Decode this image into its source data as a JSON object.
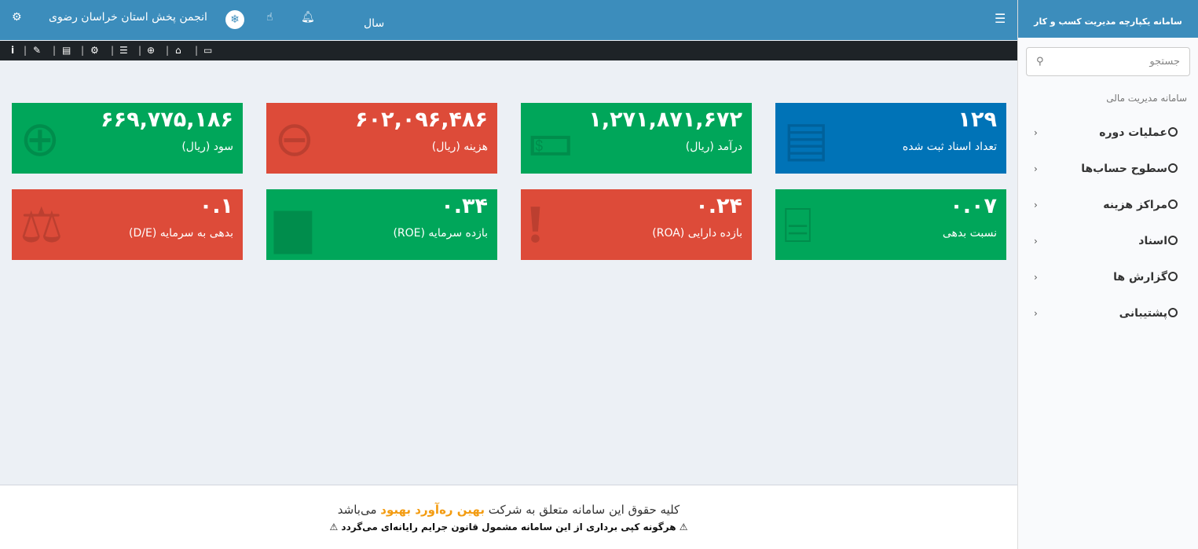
{
  "header": {
    "org_name": "انجمن پخش استان خراسان رضوی",
    "year_label": "سال"
  },
  "toolbar": {
    "icons": [
      "info-icon",
      "ticket-icon",
      "document-icon",
      "cogs-icon",
      "database-icon",
      "zoom-in-icon",
      "home-icon",
      "desktop-icon"
    ]
  },
  "sidebar": {
    "brand": "سامانه یکپارچه مدیریت کسب و کار",
    "search_placeholder": "جستجو",
    "section_title": "سامانه مدیریت مالی",
    "items": [
      {
        "label": "عملیات دوره"
      },
      {
        "label": "سطوح حساب‌ها"
      },
      {
        "label": "مراکز هزینه"
      },
      {
        "label": "اسناد"
      },
      {
        "label": "گزارش ها"
      },
      {
        "label": "پشتیبانی"
      }
    ]
  },
  "tiles": [
    {
      "value": "۱۲۹",
      "label": "تعداد اسناد ثبت شده",
      "color": "#0073b7",
      "icon": "newspaper-icon"
    },
    {
      "value": "۱,۲۷۱,۸۷۱,۶۷۲",
      "label": "درآمد (ریال)",
      "color": "#00a65a",
      "icon": "money-icon"
    },
    {
      "value": "۶۰۲,۰۹۶,۴۸۶",
      "label": "هزینه (ریال)",
      "color": "#dd4b39",
      "icon": "minus-circle-icon"
    },
    {
      "value": "۶۶۹,۷۷۵,۱۸۶",
      "label": "سود (ریال)",
      "color": "#00a65a",
      "icon": "plus-circle-icon"
    },
    {
      "value": "۰.۰۷",
      "label": "نسبت بدهی",
      "color": "#00a65a",
      "icon": "hdd-icon"
    },
    {
      "value": "۰.۲۴",
      "label": "بازده دارایی (ROA)",
      "color": "#dd4b39",
      "icon": "exclamation-circle-icon"
    },
    {
      "value": "۰.۳۴",
      "label": "بازده سرمایه (ROE)",
      "color": "#00a65a",
      "icon": "archive-icon"
    },
    {
      "value": "۰.۱",
      "label": "بدهی به سرمایه (D/E)",
      "color": "#dd4b39",
      "icon": "balance-scale-icon"
    }
  ],
  "footer": {
    "line1_prefix": "کلیه حقوق این سامانه متعلق به شرکت",
    "company": "بهین ره‌آورد بهبود",
    "line1_suffix": "می‌باشد",
    "line2": "هرگونه کپی برداری از این سامانه مشمول قانون جرایم رایانه‌ای می‌گردد"
  }
}
